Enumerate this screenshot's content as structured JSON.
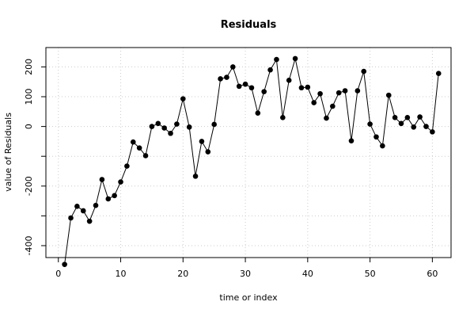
{
  "chart_data": {
    "type": "line",
    "title": "Residuals",
    "xlabel": "time or index",
    "ylabel": "value of Residuals",
    "xlim": [
      -2,
      63
    ],
    "ylim": [
      -440,
      265
    ],
    "x_ticks": [
      0,
      10,
      20,
      30,
      40,
      50,
      60
    ],
    "y_ticks": [
      -400,
      -300,
      -200,
      -100,
      0,
      100,
      200
    ],
    "y_tick_labels": [
      "-400",
      "",
      "-200",
      "",
      "0",
      "100",
      "200"
    ],
    "grid": true,
    "markers": "filled-circle",
    "series": [
      {
        "x": [
          1,
          2,
          3,
          4,
          5,
          6,
          7,
          8,
          9,
          10,
          11,
          12,
          13,
          14,
          15,
          16,
          17,
          18,
          19,
          20,
          21,
          22,
          23,
          24,
          25,
          26,
          27,
          28,
          29,
          30,
          31,
          32,
          33,
          34,
          35,
          36,
          37,
          38,
          39,
          40,
          41,
          42,
          43,
          44,
          45,
          46,
          47,
          48,
          49,
          50,
          51,
          52,
          53,
          54,
          55,
          56,
          57,
          58,
          59,
          60,
          61
        ],
        "values": [
          -463,
          -307,
          -268,
          -283,
          -318,
          -265,
          -178,
          -243,
          -232,
          -186,
          -133,
          -52,
          -72,
          -98,
          0,
          10,
          -5,
          -23,
          8,
          93,
          -2,
          -167,
          -50,
          -85,
          7,
          160,
          165,
          200,
          135,
          142,
          130,
          45,
          117,
          190,
          225,
          30,
          155,
          228,
          130,
          132,
          80,
          110,
          28,
          68,
          113,
          120,
          -48,
          120,
          185,
          8,
          -35,
          -65,
          105,
          30,
          10,
          30,
          -2,
          32,
          0,
          -18,
          178
        ]
      }
    ]
  }
}
